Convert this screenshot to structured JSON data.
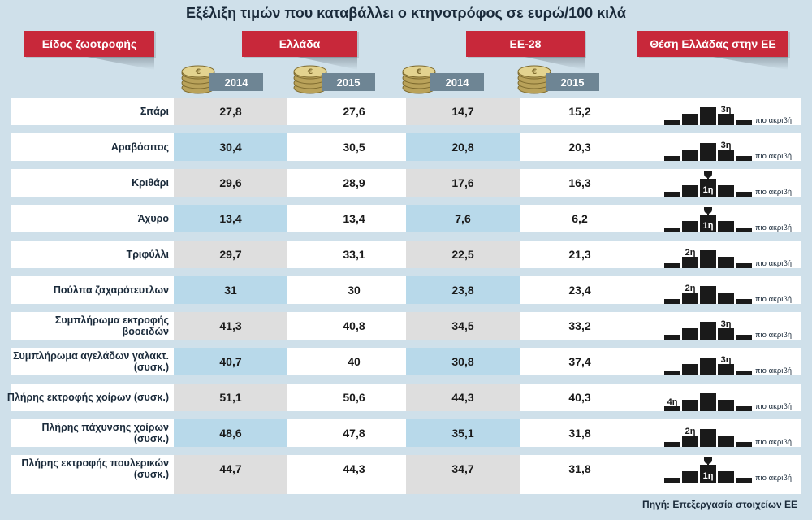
{
  "title": "Εξέλιξη τιμών που καταβάλλει ο κτηνοτρόφος σε ευρώ/100 κιλά",
  "headers": {
    "product": "Είδος ζωοτροφής",
    "greece": "Ελλάδα",
    "eu": "ΕΕ-28",
    "rank": "Θέση Ελλάδας στην ΕΕ"
  },
  "years": [
    "2014",
    "2015",
    "2014",
    "2015"
  ],
  "rank_caption": "πιο ακριβή",
  "source": "Πηγή: Επεξεργασία στοιχείων ΕΕ",
  "colors": {
    "header_red": "#c8283a",
    "year_tag": "#6e8594",
    "row_blue": "#b8d9ea",
    "column_gray": "#dedede",
    "podium": "#1a1a1a",
    "background": "#cfe0ea"
  },
  "chart_data": {
    "type": "table",
    "title": "Εξέλιξη τιμών που καταβάλλει ο κτηνοτρόφος σε ευρώ/100 κιλά",
    "columns": [
      "Είδος ζωοτροφής",
      "Ελλάδα 2014",
      "Ελλάδα 2015",
      "ΕΕ-28 2014",
      "ΕΕ-28 2015",
      "Θέση Ελλάδας στην ΕΕ"
    ],
    "rows": [
      {
        "name": "Σιτάρι",
        "gr2014": "27,8",
        "gr2015": "27,6",
        "eu2014": "14,7",
        "eu2015": "15,2",
        "rank": "3η",
        "trophy": false
      },
      {
        "name": "Αραβόσιτος",
        "gr2014": "30,4",
        "gr2015": "30,5",
        "eu2014": "20,8",
        "eu2015": "20,3",
        "rank": "3η",
        "trophy": false
      },
      {
        "name": "Κριθάρι",
        "gr2014": "29,6",
        "gr2015": "28,9",
        "eu2014": "17,6",
        "eu2015": "16,3",
        "rank": "1η",
        "trophy": true
      },
      {
        "name": "Άχυρο",
        "gr2014": "13,4",
        "gr2015": "13,4",
        "eu2014": "7,6",
        "eu2015": "6,2",
        "rank": "1η",
        "trophy": true
      },
      {
        "name": "Τριφύλλι",
        "gr2014": "29,7",
        "gr2015": "33,1",
        "eu2014": "22,5",
        "eu2015": "21,3",
        "rank": "2η",
        "trophy": false
      },
      {
        "name": "Πούλπα ζαχαρότευτλων",
        "gr2014": "31",
        "gr2015": "30",
        "eu2014": "23,8",
        "eu2015": "23,4",
        "rank": "2η",
        "trophy": false
      },
      {
        "name": "Συμπλήρωμα εκτροφής βοοειδών",
        "gr2014": "41,3",
        "gr2015": "40,8",
        "eu2014": "34,5",
        "eu2015": "33,2",
        "rank": "3η",
        "trophy": false
      },
      {
        "name": "Συμπλήρωμα αγελάδων γαλακτ. (συσκ.)",
        "gr2014": "40,7",
        "gr2015": "40",
        "eu2014": "30,8",
        "eu2015": "37,4",
        "rank": "3η",
        "trophy": false
      },
      {
        "name": "Πλήρης εκτροφής χοίρων (συσκ.)",
        "gr2014": "51,1",
        "gr2015": "50,6",
        "eu2014": "44,3",
        "eu2015": "40,3",
        "rank": "4η",
        "trophy": false
      },
      {
        "name": "Πλήρης πάχυνσης χοίρων (συσκ.)",
        "gr2014": "48,6",
        "gr2015": "47,8",
        "eu2014": "35,1",
        "eu2015": "31,8",
        "rank": "2η",
        "trophy": false
      },
      {
        "name": "Πλήρης εκτροφής πουλερικών (συσκ.)",
        "gr2014": "44,7",
        "gr2015": "44,3",
        "eu2014": "34,7",
        "eu2015": "31,8",
        "rank": "1η",
        "trophy": true
      }
    ]
  }
}
